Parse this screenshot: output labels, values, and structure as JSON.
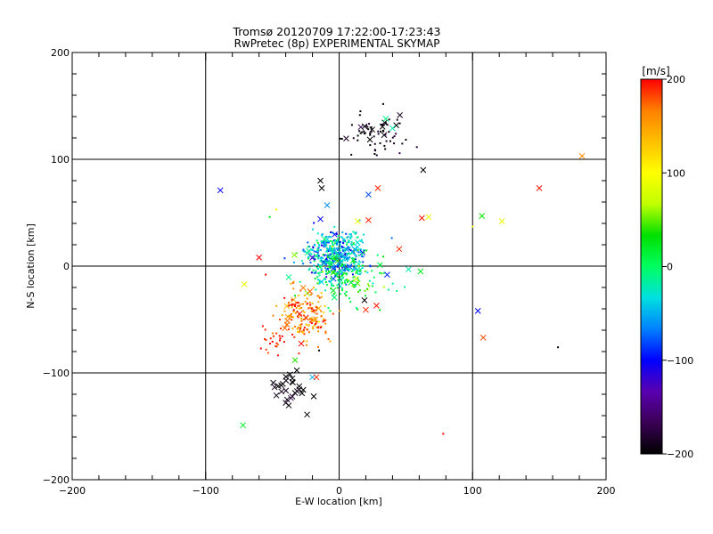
{
  "chart_data": {
    "type": "scatter",
    "title": "Tromsø 20120709 17:22:00-17:23:43",
    "subtitle": "RwPretec (8p) EXPERIMENTAL SKYMAP",
    "xlabel": "E-W location [km]",
    "ylabel": "N-S location [km]",
    "xlim": [
      -200,
      200
    ],
    "ylim": [
      -200,
      200
    ],
    "xticks": [
      -200,
      -100,
      0,
      100,
      200
    ],
    "yticks": [
      -200,
      -100,
      0,
      100,
      200
    ],
    "xticks_text": [
      "−200",
      "−100",
      "0",
      "100",
      "200"
    ],
    "yticks_text": [
      "−200",
      "−100",
      "0",
      "100",
      "200"
    ],
    "grid": [
      -100,
      0,
      100
    ],
    "colorbar": {
      "label": "[m/s]",
      "range": [
        -200,
        200
      ],
      "ticks": [
        200,
        100,
        0,
        -100,
        -200
      ],
      "ticks_text": [
        "200",
        "100",
        "0",
        "−100",
        "−200"
      ],
      "colors": [
        "#000000",
        "#3a0055",
        "#5a00b0",
        "#0000ff",
        "#0080ff",
        "#00e0e0",
        "#00ff60",
        "#00e000",
        "#c0ff00",
        "#ffff00",
        "#ffc000",
        "#ff8000",
        "#ff0000"
      ]
    },
    "markers": {
      "dot": "small dot",
      "cross": "×"
    },
    "clusters": [
      {
        "center": [
          28,
          124
        ],
        "spread": [
          10,
          9
        ],
        "vel_mean": -195,
        "vel_spread": 15,
        "dots": 60,
        "crosses": 10
      },
      {
        "center": [
          -38,
          -118
        ],
        "spread": [
          6,
          8
        ],
        "vel_mean": -195,
        "vel_spread": 10,
        "dots": 0,
        "crosses": 26
      },
      {
        "center": [
          -2,
          10
        ],
        "spread": [
          11,
          11
        ],
        "vel_mean": -45,
        "vel_spread": 35,
        "dots": 420,
        "crosses": 30
      },
      {
        "center": [
          5,
          -10
        ],
        "spread": [
          15,
          12
        ],
        "vel_mean": 10,
        "vel_spread": 25,
        "dots": 140,
        "crosses": 12
      },
      {
        "center": [
          -25,
          -45
        ],
        "spread": [
          10,
          12
        ],
        "vel_mean": 165,
        "vel_spread": 25,
        "dots": 160,
        "crosses": 14
      },
      {
        "center": [
          -50,
          -70
        ],
        "spread": [
          9,
          6
        ],
        "vel_mean": 195,
        "vel_spread": 10,
        "dots": 25,
        "crosses": 0
      }
    ],
    "points": [
      {
        "x": 182,
        "y": 103,
        "v": 160,
        "m": "cross"
      },
      {
        "x": 150,
        "y": 73,
        "v": 195,
        "m": "cross"
      },
      {
        "x": -89,
        "y": 71,
        "v": -100,
        "m": "cross"
      },
      {
        "x": 107,
        "y": 47,
        "v": 35,
        "m": "cross"
      },
      {
        "x": 122,
        "y": 42,
        "v": 90,
        "m": "cross"
      },
      {
        "x": 104,
        "y": -42,
        "v": -100,
        "m": "cross"
      },
      {
        "x": 108,
        "y": -67,
        "v": 180,
        "m": "cross"
      },
      {
        "x": 164,
        "y": -76,
        "v": -200,
        "m": "dot"
      },
      {
        "x": -71,
        "y": -17,
        "v": 90,
        "m": "cross"
      },
      {
        "x": -60,
        "y": 8,
        "v": 200,
        "m": "cross"
      },
      {
        "x": -72,
        "y": -149,
        "v": 20,
        "m": "cross"
      },
      {
        "x": 78,
        "y": -157,
        "v": 200,
        "m": "dot"
      },
      {
        "x": -24,
        "y": -139,
        "v": -200,
        "m": "cross"
      },
      {
        "x": 63,
        "y": 90,
        "v": -200,
        "m": "cross"
      },
      {
        "x": 67,
        "y": 46,
        "v": 90,
        "m": "cross"
      },
      {
        "x": 62,
        "y": 45,
        "v": 195,
        "m": "cross"
      },
      {
        "x": 22,
        "y": 67,
        "v": -80,
        "m": "cross"
      },
      {
        "x": 29,
        "y": 73,
        "v": 190,
        "m": "cross"
      },
      {
        "x": 35,
        "y": 138,
        "v": -10,
        "m": "cross"
      },
      {
        "x": 40,
        "y": 129,
        "v": -20,
        "m": "cross"
      },
      {
        "x": -14,
        "y": 80,
        "v": -200,
        "m": "cross"
      },
      {
        "x": -13,
        "y": 73,
        "v": -200,
        "m": "cross"
      },
      {
        "x": -15,
        "y": -79,
        "v": -200,
        "m": "dot"
      },
      {
        "x": -20,
        "y": -104,
        "v": -50,
        "m": "cross"
      },
      {
        "x": -17,
        "y": -104,
        "v": 190,
        "m": "cross"
      },
      {
        "x": -19,
        "y": -122,
        "v": -200,
        "m": "cross"
      },
      {
        "x": -55,
        "y": -8,
        "v": 200,
        "m": "dot"
      },
      {
        "x": 28,
        "y": -37,
        "v": 195,
        "m": "cross"
      },
      {
        "x": 20,
        "y": -41,
        "v": 190,
        "m": "cross"
      },
      {
        "x": 19,
        "y": -32,
        "v": -200,
        "m": "cross"
      },
      {
        "x": 36,
        "y": -8,
        "v": -90,
        "m": "cross"
      },
      {
        "x": 52,
        "y": -3,
        "v": -20,
        "m": "cross"
      },
      {
        "x": 61,
        "y": -5,
        "v": 20,
        "m": "cross"
      },
      {
        "x": 45,
        "y": 16,
        "v": 190,
        "m": "cross"
      },
      {
        "x": 22,
        "y": 43,
        "v": 190,
        "m": "cross"
      },
      {
        "x": 14,
        "y": 42,
        "v": 90,
        "m": "cross"
      },
      {
        "x": -14,
        "y": 44,
        "v": -100,
        "m": "cross"
      },
      {
        "x": -9,
        "y": 57,
        "v": -60,
        "m": "cross"
      },
      {
        "x": -33,
        "y": -88,
        "v": 40,
        "m": "cross"
      },
      {
        "x": 100,
        "y": 37,
        "v": 100,
        "m": "dot"
      },
      {
        "x": -47,
        "y": 53,
        "v": 100,
        "m": "dot"
      },
      {
        "x": -52,
        "y": 46,
        "v": 30,
        "m": "dot"
      }
    ]
  }
}
